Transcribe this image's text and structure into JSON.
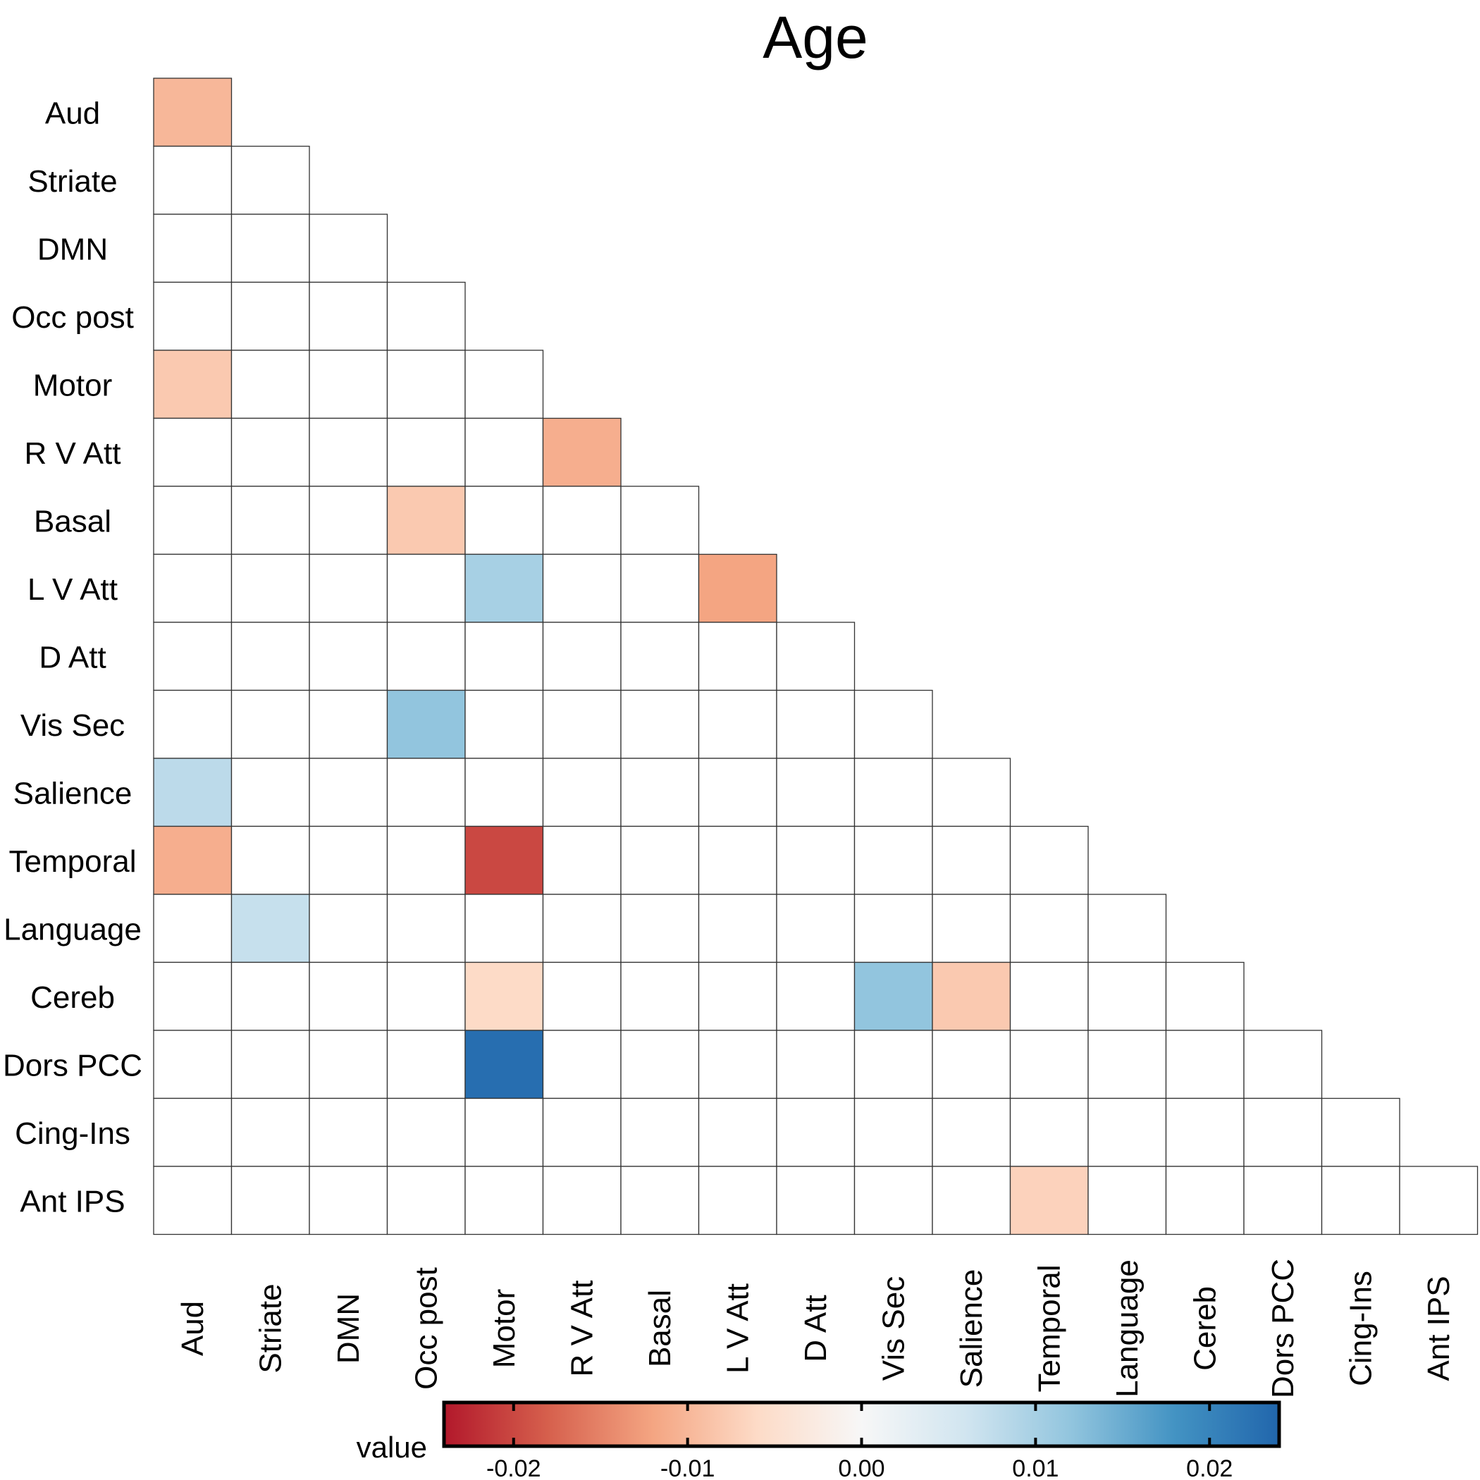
{
  "chart_data": {
    "type": "heatmap",
    "title": "Age",
    "rows": [
      "Aud",
      "Striate",
      "DMN",
      "Occ post",
      "Motor",
      "R V Att",
      "Basal",
      "L V Att",
      "D Att",
      "Vis Sec",
      "Salience",
      "Temporal",
      "Language",
      "Cereb",
      "Dors PCC",
      "Cing-Ins",
      "Ant IPS"
    ],
    "columns": [
      "Aud",
      "Striate",
      "DMN",
      "Occ post",
      "Motor",
      "R V Att",
      "Basal",
      "L V Att",
      "D Att",
      "Vis Sec",
      "Salience",
      "Temporal",
      "Language",
      "Cereb",
      "Dors PCC",
      "Cing-Ins",
      "Ant IPS"
    ],
    "shape": "lower-triangle",
    "cells": [
      {
        "row": "Aud",
        "col": "Aud",
        "value": -0.01
      },
      {
        "row": "Motor",
        "col": "Aud",
        "value": -0.008
      },
      {
        "row": "R V Att",
        "col": "R V Att",
        "value": -0.011
      },
      {
        "row": "Basal",
        "col": "Occ post",
        "value": -0.008
      },
      {
        "row": "L V Att",
        "col": "Motor",
        "value": 0.01
      },
      {
        "row": "L V Att",
        "col": "L V Att",
        "value": -0.012
      },
      {
        "row": "Vis Sec",
        "col": "Occ post",
        "value": 0.012
      },
      {
        "row": "Salience",
        "col": "Aud",
        "value": 0.008
      },
      {
        "row": "Temporal",
        "col": "Aud",
        "value": -0.011
      },
      {
        "row": "Temporal",
        "col": "Motor",
        "value": -0.02
      },
      {
        "row": "Language",
        "col": "Striate",
        "value": 0.007
      },
      {
        "row": "Cereb",
        "col": "Motor",
        "value": -0.006
      },
      {
        "row": "Cereb",
        "col": "Vis Sec",
        "value": 0.012
      },
      {
        "row": "Cereb",
        "col": "Salience",
        "value": -0.008
      },
      {
        "row": "Dors PCC",
        "col": "Motor",
        "value": 0.023
      },
      {
        "row": "Ant IPS",
        "col": "Temporal",
        "value": -0.007
      }
    ],
    "colorbar": {
      "label": "value",
      "min": -0.024,
      "max": 0.024,
      "ticks": [
        -0.02,
        -0.01,
        0.0,
        0.01,
        0.02
      ],
      "tick_labels": [
        "-0.02",
        "-0.01",
        "0.00",
        "0.01",
        "0.02"
      ],
      "colors": [
        "#b2182b",
        "#d6604d",
        "#f4a582",
        "#fddbc7",
        "#f7f7f7",
        "#d1e5f0",
        "#92c5de",
        "#4393c3",
        "#2166ac"
      ]
    }
  }
}
